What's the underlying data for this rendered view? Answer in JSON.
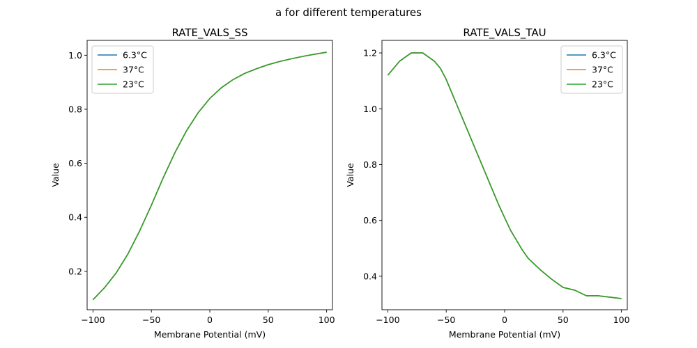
{
  "figure": {
    "title": "a for different temperatures"
  },
  "chart_data": [
    {
      "type": "line",
      "title": "RATE_VALS_SS",
      "xlabel": "Membrane Potential (mV)",
      "ylabel": "Value",
      "xlim": [
        -105,
        105
      ],
      "ylim": [
        0.058,
        1.055
      ],
      "xticks": [
        -100,
        -50,
        0,
        50,
        100
      ],
      "xtick_labels": [
        "−100",
        "−50",
        "0",
        "50",
        "100"
      ],
      "yticks": [
        0.2,
        0.4,
        0.6,
        0.8,
        1.0
      ],
      "ytick_labels": [
        "0.2",
        "0.4",
        "0.6",
        "0.8",
        "1.0"
      ],
      "grid": false,
      "legend_position": "top-left",
      "x": [
        -100,
        -90,
        -80,
        -70,
        -60,
        -50,
        -40,
        -30,
        -20,
        -10,
        0,
        10,
        20,
        30,
        40,
        50,
        60,
        70,
        80,
        90,
        100
      ],
      "series": [
        {
          "name": "6.3°C",
          "color": "#1f77b4",
          "values": [
            0.095,
            0.14,
            0.195,
            0.265,
            0.35,
            0.445,
            0.545,
            0.638,
            0.72,
            0.787,
            0.84,
            0.88,
            0.91,
            0.933,
            0.95,
            0.965,
            0.977,
            0.987,
            0.996,
            1.004,
            1.011
          ]
        },
        {
          "name": "37°C",
          "color": "#ff7f0e",
          "values": [
            0.095,
            0.14,
            0.195,
            0.265,
            0.35,
            0.445,
            0.545,
            0.638,
            0.72,
            0.787,
            0.84,
            0.88,
            0.91,
            0.933,
            0.95,
            0.965,
            0.977,
            0.987,
            0.996,
            1.004,
            1.011
          ]
        },
        {
          "name": "23°C",
          "color": "#2ca02c",
          "values": [
            0.095,
            0.14,
            0.195,
            0.265,
            0.35,
            0.445,
            0.545,
            0.638,
            0.72,
            0.787,
            0.84,
            0.88,
            0.91,
            0.933,
            0.95,
            0.965,
            0.977,
            0.987,
            0.996,
            1.004,
            1.011
          ]
        }
      ]
    },
    {
      "type": "line",
      "title": "RATE_VALS_TAU",
      "xlabel": "Membrane Potential (mV)",
      "ylabel": "Value",
      "xlim": [
        -105,
        105
      ],
      "ylim": [
        0.28,
        1.245
      ],
      "xticks": [
        -100,
        -50,
        0,
        50,
        100
      ],
      "xtick_labels": [
        "−100",
        "−50",
        "0",
        "50",
        "100"
      ],
      "yticks": [
        0.4,
        0.6,
        0.8,
        1.0,
        1.2
      ],
      "ytick_labels": [
        "0.4",
        "0.6",
        "0.8",
        "1.0",
        "1.2"
      ],
      "grid": false,
      "legend_position": "top-right",
      "x": [
        -100,
        -90,
        -80,
        -75,
        -70,
        -65,
        -60,
        -55,
        -50,
        -45,
        -40,
        -35,
        -30,
        -25,
        -20,
        -15,
        -10,
        -5,
        0,
        5,
        10,
        15,
        20,
        30,
        40,
        50,
        60,
        70,
        80,
        90,
        100
      ],
      "series": [
        {
          "name": "6.3°C",
          "color": "#1f77b4",
          "values": [
            1.12,
            1.17,
            1.2,
            1.2,
            1.2,
            1.185,
            1.17,
            1.145,
            1.105,
            1.055,
            1.005,
            0.955,
            0.905,
            0.855,
            0.805,
            0.755,
            0.705,
            0.655,
            0.61,
            0.565,
            0.53,
            0.495,
            0.465,
            0.425,
            0.39,
            0.36,
            0.35,
            0.33,
            0.33,
            0.325,
            0.32
          ]
        },
        {
          "name": "37°C",
          "color": "#ff7f0e",
          "values": [
            1.12,
            1.17,
            1.2,
            1.2,
            1.2,
            1.185,
            1.17,
            1.145,
            1.105,
            1.055,
            1.005,
            0.955,
            0.905,
            0.855,
            0.805,
            0.755,
            0.705,
            0.655,
            0.61,
            0.565,
            0.53,
            0.495,
            0.465,
            0.425,
            0.39,
            0.36,
            0.35,
            0.33,
            0.33,
            0.325,
            0.32
          ]
        },
        {
          "name": "23°C",
          "color": "#2ca02c",
          "values": [
            1.12,
            1.17,
            1.2,
            1.2,
            1.2,
            1.185,
            1.17,
            1.145,
            1.105,
            1.055,
            1.005,
            0.955,
            0.905,
            0.855,
            0.805,
            0.755,
            0.705,
            0.655,
            0.61,
            0.565,
            0.53,
            0.495,
            0.465,
            0.425,
            0.39,
            0.36,
            0.35,
            0.33,
            0.33,
            0.325,
            0.32
          ]
        }
      ]
    }
  ]
}
